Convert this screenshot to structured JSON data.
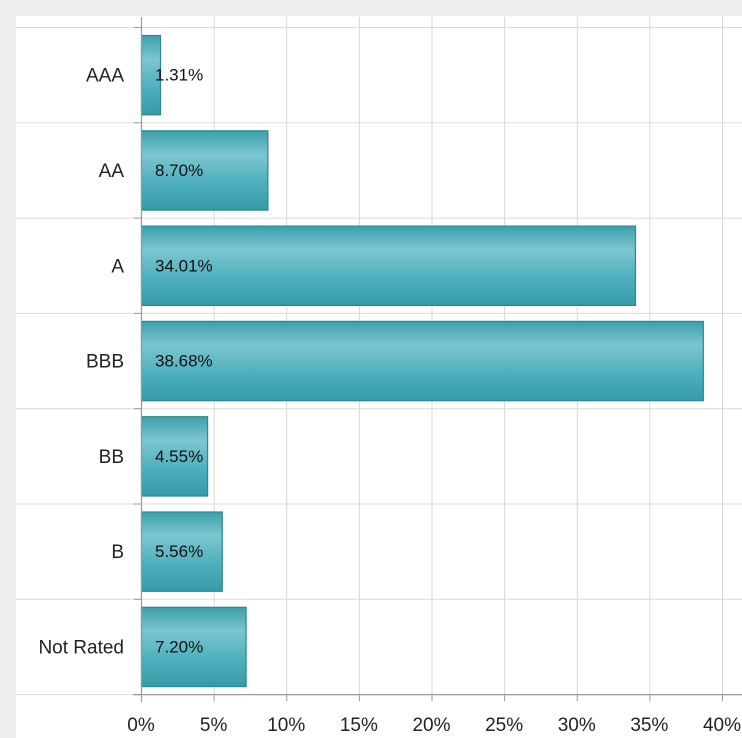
{
  "chart_data": {
    "type": "bar",
    "orientation": "horizontal",
    "categories": [
      "AAA",
      "AA",
      "A",
      "BBB",
      "BB",
      "B",
      "Not Rated"
    ],
    "values": [
      1.31,
      8.7,
      34.01,
      38.68,
      4.55,
      5.56,
      7.2
    ],
    "data_labels": [
      "1.31%",
      "8.70%",
      "34.01%",
      "38.68%",
      "4.55%",
      "5.56%",
      "7.20%"
    ],
    "x_ticks": [
      "0%",
      "5%",
      "10%",
      "15%",
      "20%",
      "25%",
      "30%",
      "35%",
      "40%"
    ],
    "xlim": [
      0,
      40
    ],
    "grid": true,
    "bar_color": "#4aabb8",
    "bar_border_color": "#2a8893",
    "title": "",
    "xlabel": "",
    "ylabel": ""
  }
}
